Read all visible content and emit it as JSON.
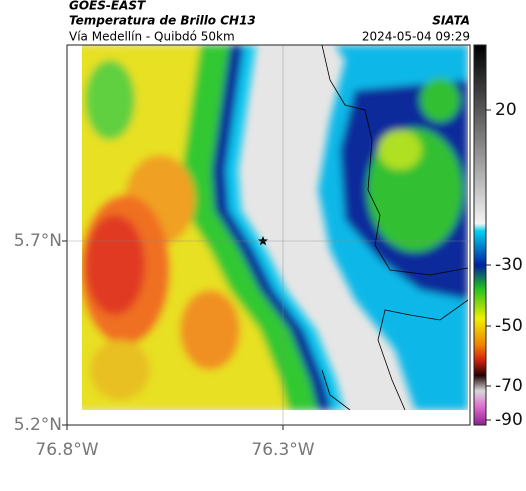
{
  "header": {
    "source": "GOES-EAST",
    "title": "Temperatura de Brillo CH13",
    "subtitle": "Vía Medellín - Quibdó 50km",
    "agency": "SIATA",
    "timestamp": "2024-05-04 09:29"
  },
  "map": {
    "lat_ticks": [
      {
        "value": 5.7,
        "label": "5.7°N"
      },
      {
        "value": 5.2,
        "label": "5.2°N"
      }
    ],
    "lon_ticks": [
      {
        "value": -76.8,
        "label": "76.8°W"
      },
      {
        "value": -76.3,
        "label": "76.3°W"
      }
    ],
    "colorbar_ticks": [
      20,
      -30,
      -50,
      -70,
      -90
    ]
  }
}
